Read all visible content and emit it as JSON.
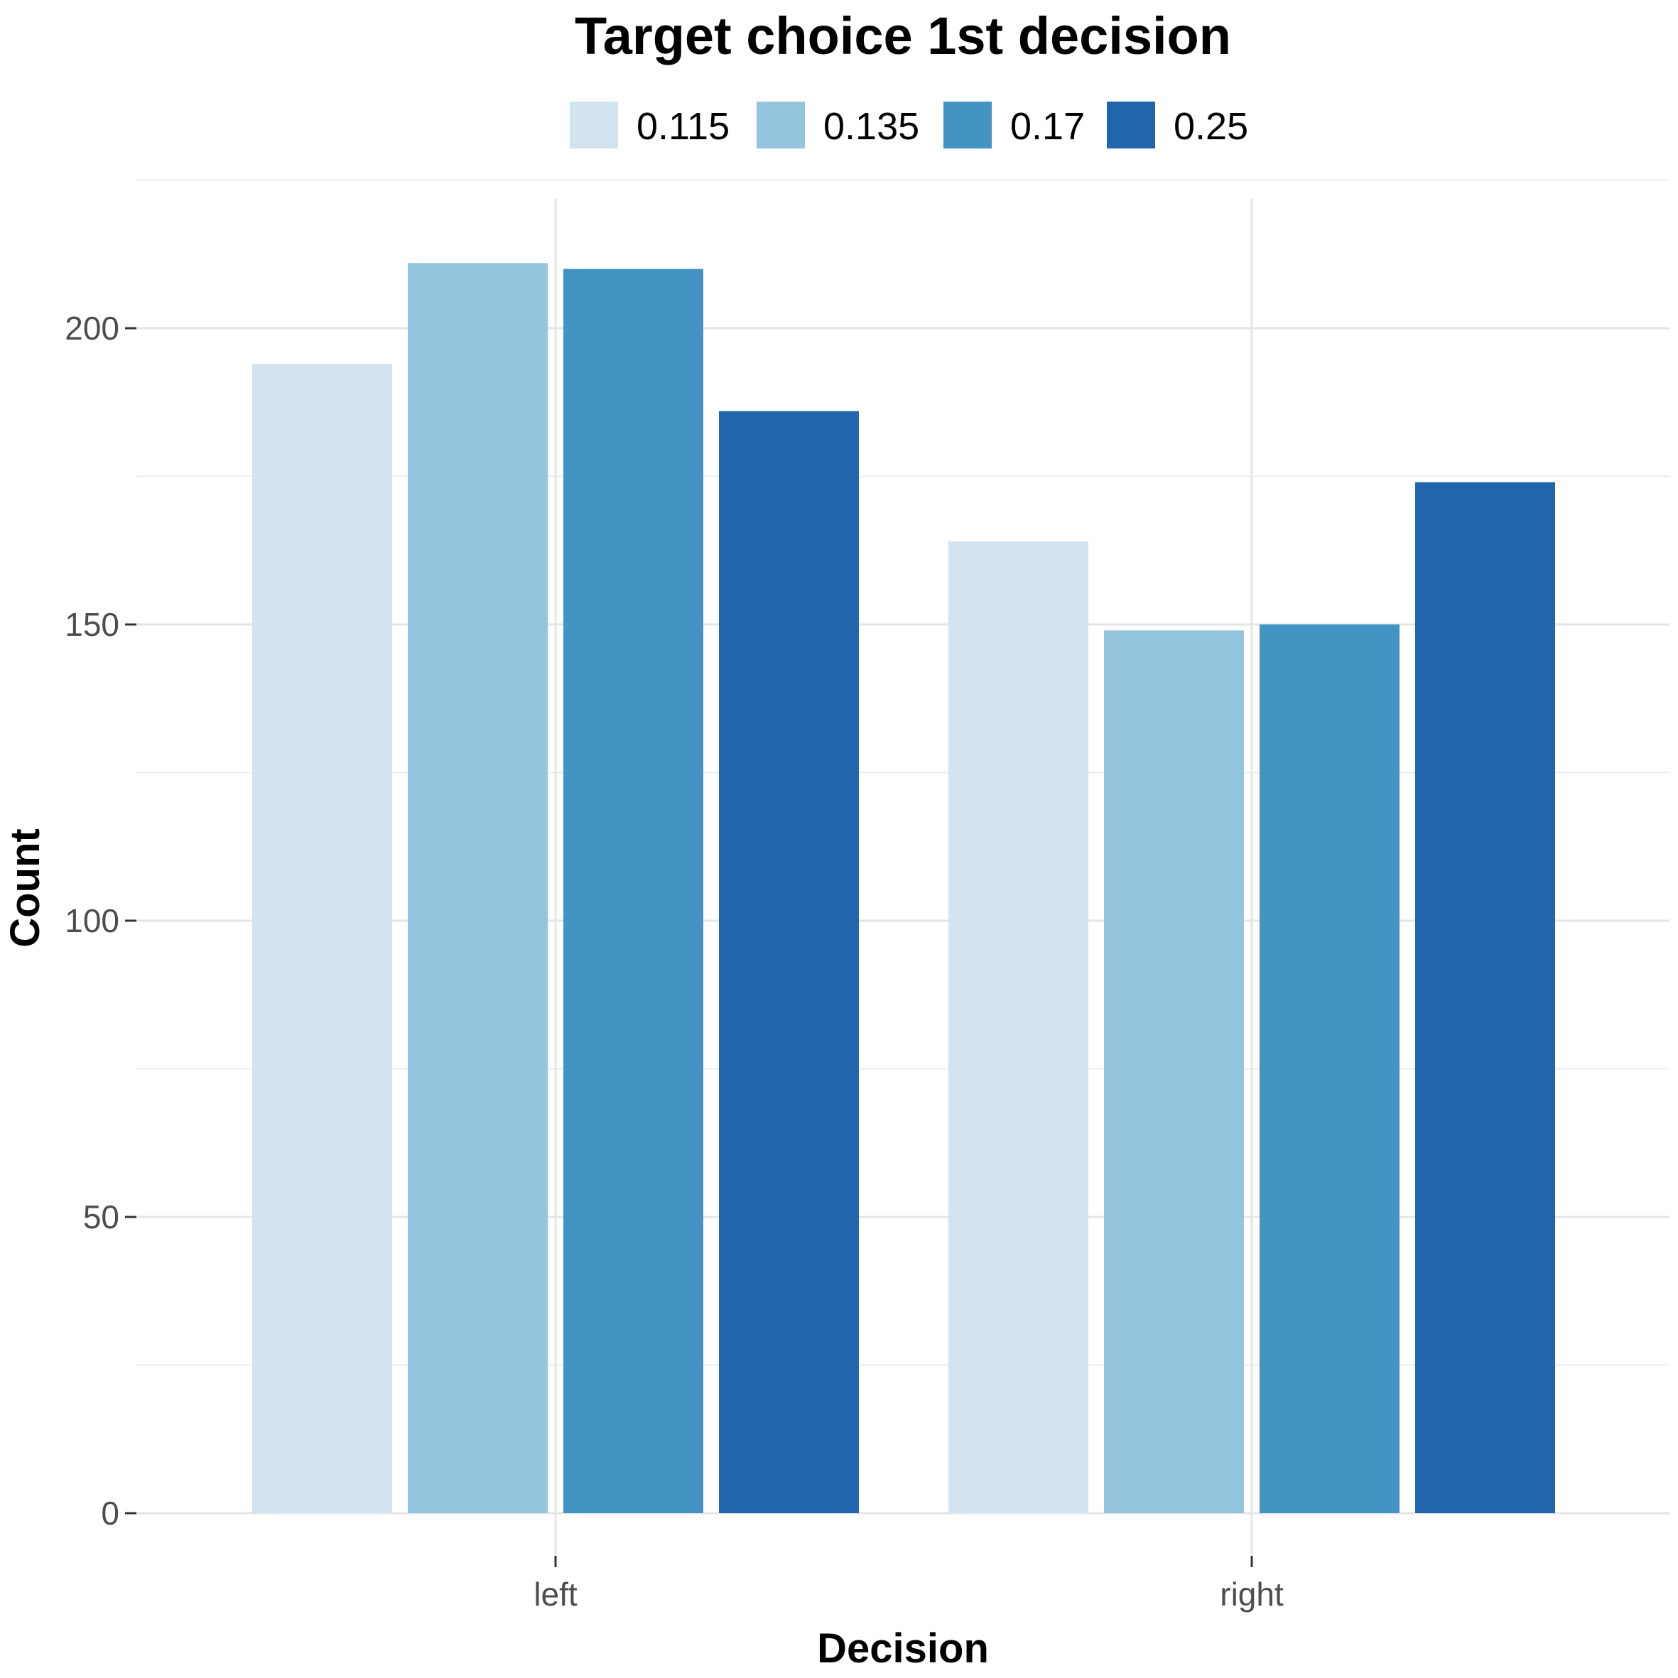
{
  "chart_data": {
    "type": "bar",
    "title": "Target choice 1st decision",
    "xlabel": "Decision",
    "ylabel": "Count",
    "categories": [
      "left",
      "right"
    ],
    "series": [
      {
        "name": "0.115",
        "color": "#d1e4f0",
        "values": [
          194,
          164
        ]
      },
      {
        "name": "0.135",
        "color": "#94c4de",
        "values": [
          211,
          149
        ]
      },
      {
        "name": "0.17",
        "color": "#4393c3",
        "values": [
          210,
          150
        ]
      },
      {
        "name": "0.25",
        "color": "#2166ac",
        "values": [
          186,
          174
        ]
      }
    ],
    "yticks": [
      0,
      50,
      100,
      150,
      200
    ],
    "ylim": [
      0,
      220
    ],
    "grid": true,
    "legend_position": "top"
  }
}
